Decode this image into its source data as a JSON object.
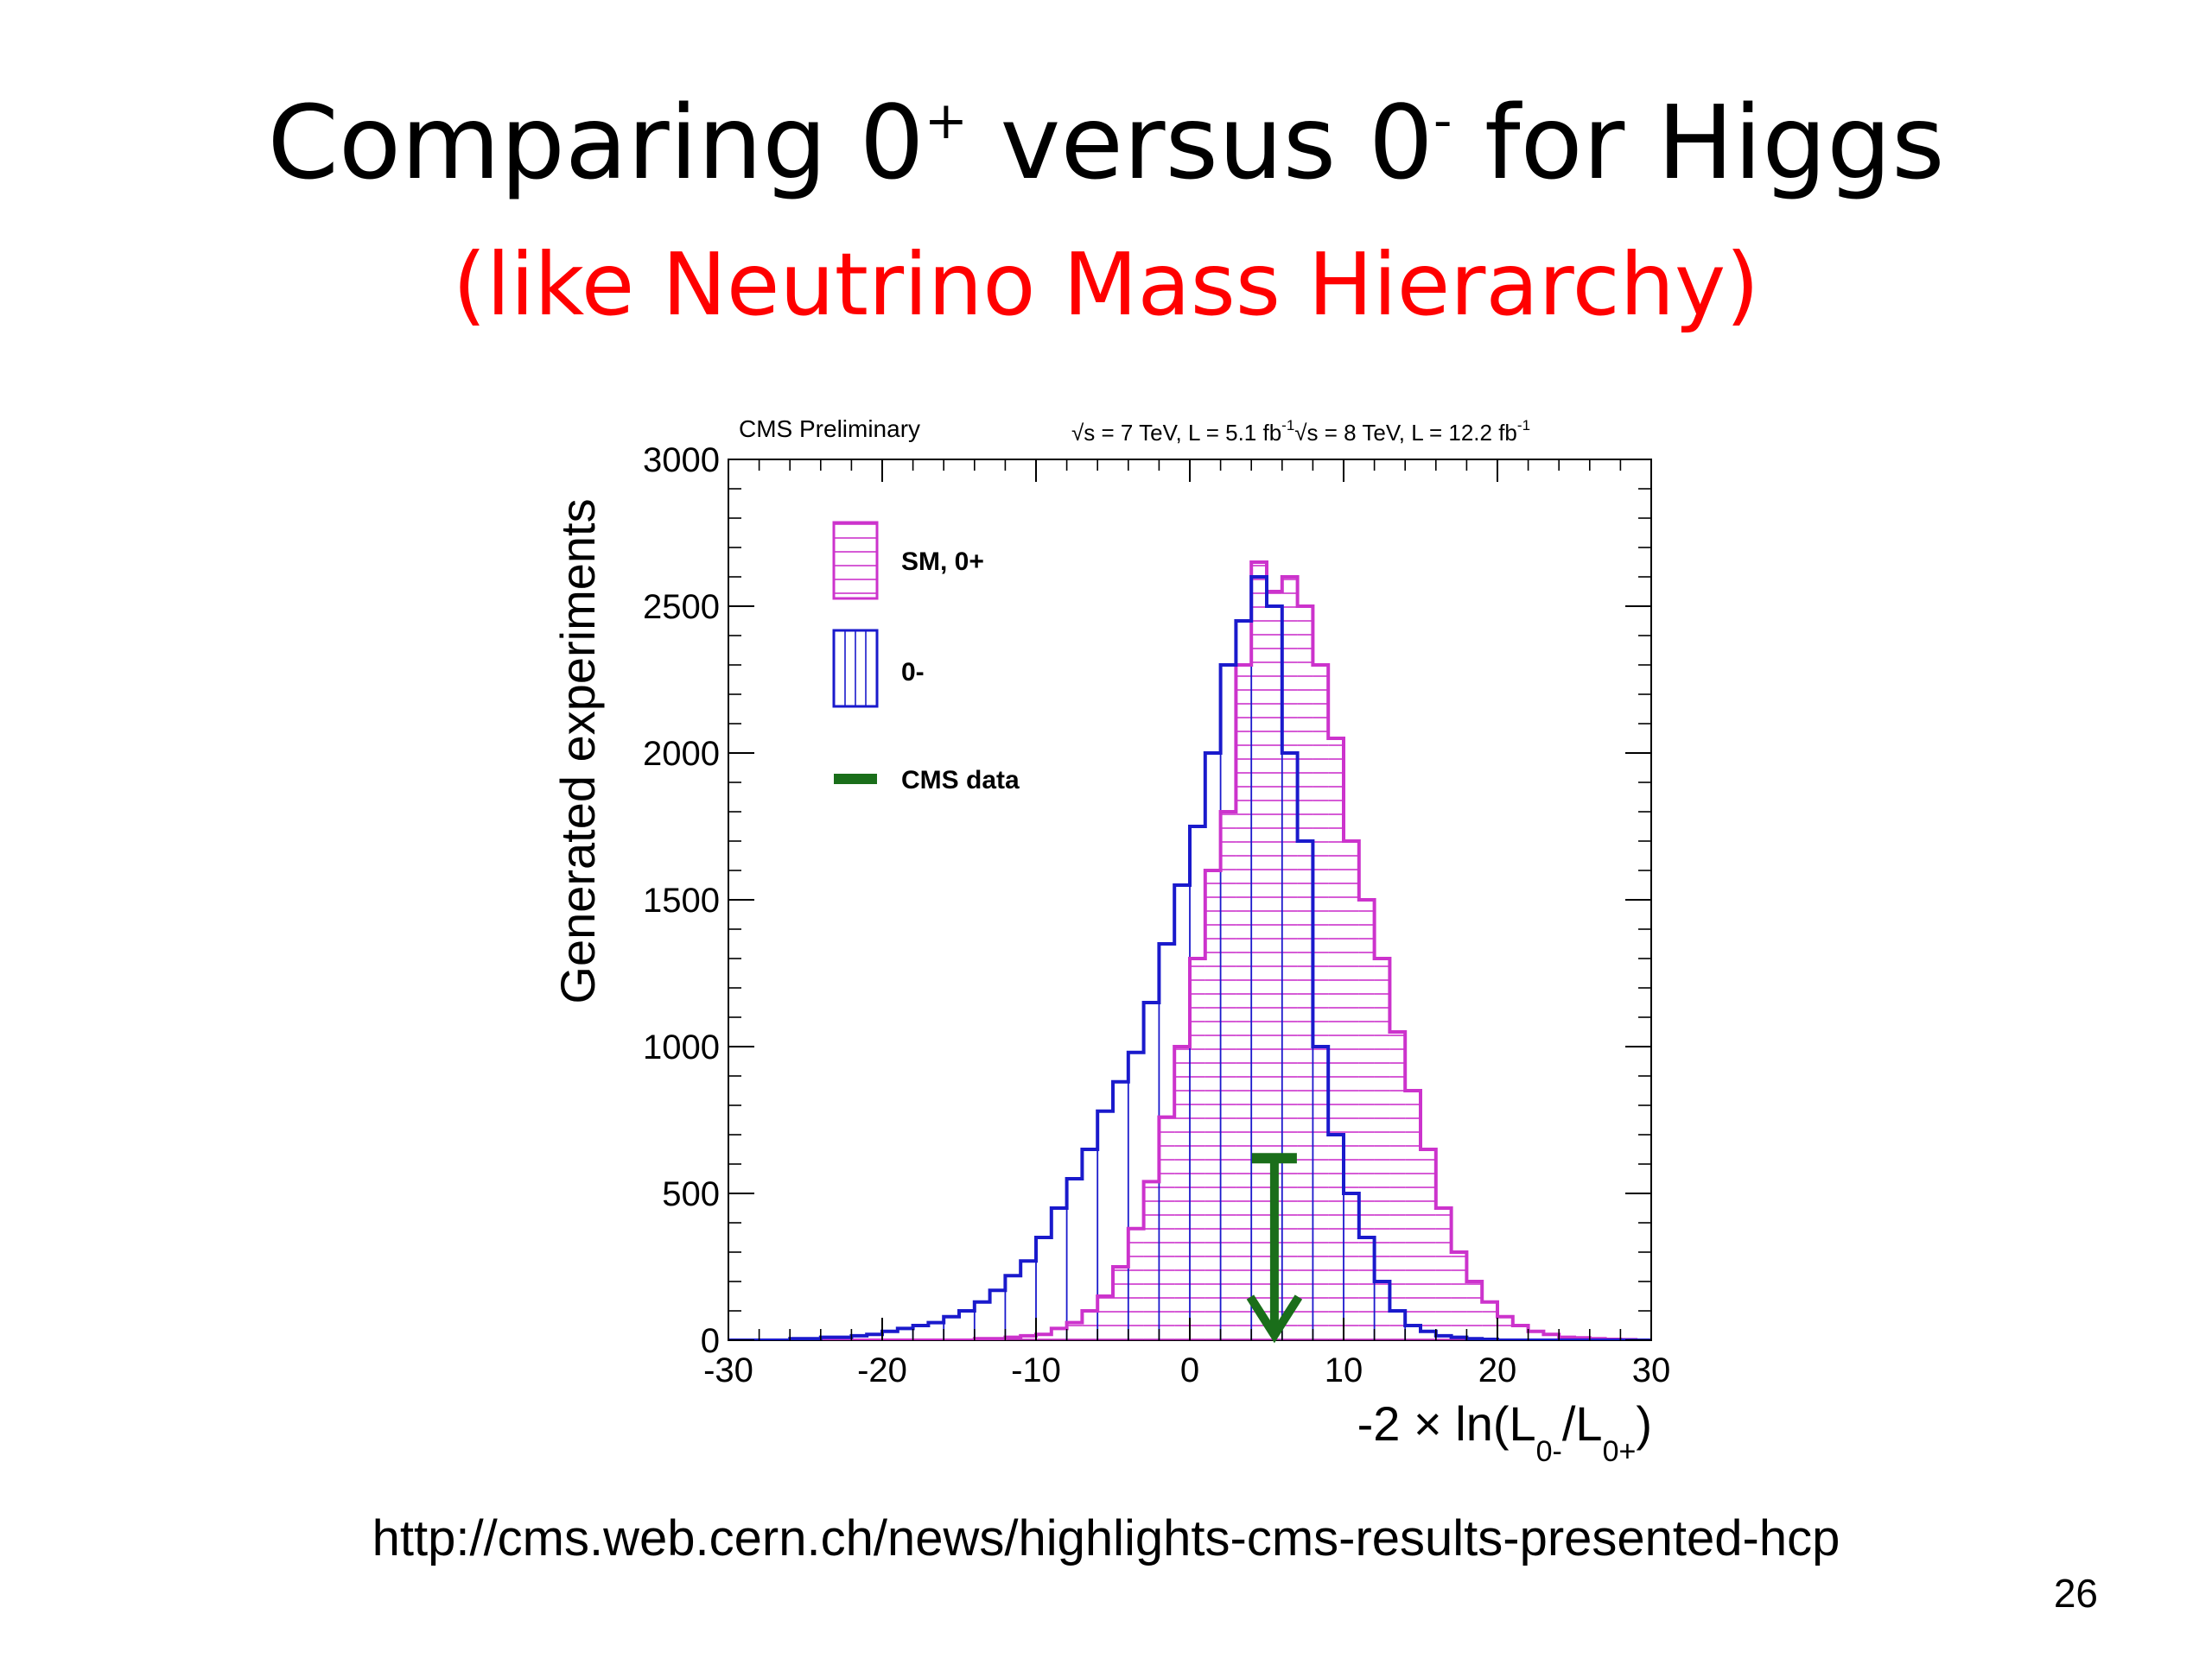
{
  "slide": {
    "title_pre": "Comparing 0",
    "title_sup1": "+",
    "title_mid": " versus 0",
    "title_sup2": "-",
    "title_post": " for Higgs",
    "subtitle": "(like Neutrino Mass Hierarchy)",
    "source_url": "http://cms.web.cern.ch/news/highlights-cms-results-presented-hcp",
    "page_number": "26"
  },
  "chart_data": {
    "type": "histogram",
    "header_left": "CMS Preliminary",
    "header_right_1": "√s = 7 TeV, L = 5.1 fb",
    "header_right_2": "√s = 8 TeV, L = 12.2 fb",
    "header_sup": "-1",
    "ylabel": "Generated experiments",
    "xlabel_main": "-2 × ln(L",
    "xlabel_sub1": "0-",
    "xlabel_mid": "/L",
    "xlabel_sub2": "0+",
    "xlabel_close": ")",
    "xlim": [
      -30,
      30
    ],
    "ylim": [
      0,
      3000
    ],
    "xticks": [
      -30,
      -20,
      -10,
      0,
      10,
      20,
      30
    ],
    "xtick_labels": [
      "-30",
      "-20",
      "-10",
      "0",
      "10",
      "20",
      "30"
    ],
    "yticks": [
      0,
      500,
      1000,
      1500,
      2000,
      2500,
      3000
    ],
    "ytick_labels": [
      "0",
      "500",
      "1000",
      "1500",
      "2000",
      "2500",
      "3000"
    ],
    "bin_edges_start": -30,
    "bin_width": 1,
    "colors": {
      "sm": "#cc33cc",
      "alt": "#1a1acc",
      "data": "#1a6e1a"
    },
    "legend": [
      "SM, 0+",
      "0-",
      "CMS data"
    ],
    "series": [
      {
        "name": "SM, 0+",
        "values": [
          0,
          0,
          0,
          0,
          0,
          0,
          0,
          0,
          0,
          0,
          0,
          0,
          0,
          0,
          0,
          0,
          5,
          5,
          10,
          15,
          20,
          40,
          60,
          100,
          150,
          250,
          380,
          540,
          760,
          1000,
          1300,
          1600,
          1800,
          2300,
          2650,
          2550,
          2600,
          2500,
          2300,
          2050,
          1700,
          1500,
          1300,
          1050,
          850,
          650,
          450,
          300,
          200,
          130,
          80,
          50,
          30,
          20,
          10,
          8,
          5,
          3,
          2,
          0
        ]
      },
      {
        "name": "0-",
        "values": [
          0,
          0,
          0,
          0,
          5,
          5,
          10,
          10,
          15,
          20,
          30,
          40,
          50,
          60,
          80,
          100,
          130,
          170,
          220,
          270,
          350,
          450,
          550,
          650,
          780,
          880,
          980,
          1150,
          1350,
          1550,
          1750,
          2000,
          2300,
          2450,
          2600,
          2500,
          2000,
          1700,
          1000,
          700,
          500,
          350,
          200,
          100,
          50,
          30,
          15,
          10,
          5,
          3,
          0,
          0,
          0,
          0,
          0,
          0,
          0,
          0,
          0,
          0
        ]
      }
    ],
    "data_marker": {
      "x": 5.5,
      "y": 620,
      "arrow_to_y": 0
    }
  }
}
